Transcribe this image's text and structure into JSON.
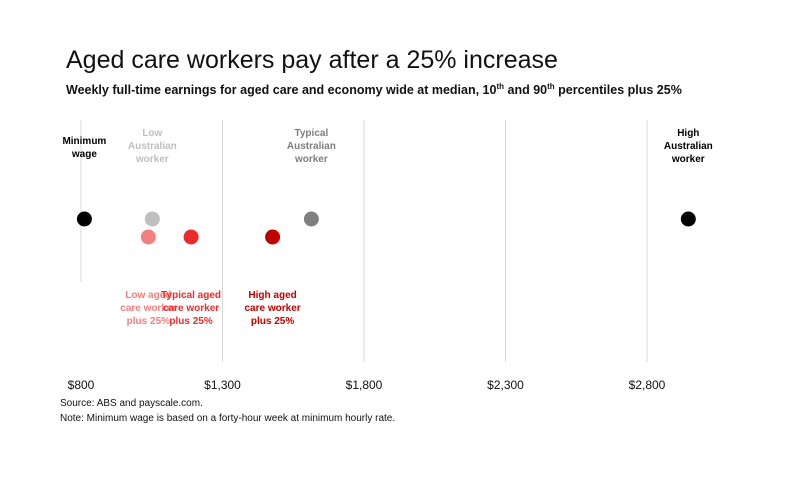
{
  "title": "Aged care workers pay after a 25% increase",
  "subtitle": {
    "prefix": "Weekly full-time earnings for aged care and economy wide at median, 10",
    "sup1": "th",
    "middle": " and 90",
    "sup2": "th",
    "suffix": " percentiles plus 25%"
  },
  "source": "Source: ABS and payscale.com.",
  "note": "Note: Minimum wage is based on a forty-hour week at minimum hourly rate.",
  "chart_data": {
    "type": "scatter",
    "xlim": [
      800,
      3000
    ],
    "x_ticks": [
      800,
      1300,
      1800,
      2300,
      2800
    ],
    "x_tick_labels": [
      "$800",
      "$1,300",
      "$1,800",
      "$2,300",
      "$2,800"
    ],
    "grid": true,
    "legend": "none",
    "points": [
      {
        "id": "minimum-wage",
        "label": [
          "Minimum",
          "wage"
        ],
        "x": 812,
        "row": "top",
        "label_pos": "above",
        "color": "#000000",
        "label_color": "#000000"
      },
      {
        "id": "low-australian-worker",
        "label": [
          "Low",
          "Australian",
          "worker"
        ],
        "x": 1052,
        "row": "top",
        "label_pos": "above",
        "color": "#bfbfbf",
        "label_color": "#bfbfbf"
      },
      {
        "id": "typical-australian-worker",
        "label": [
          "Typical",
          "Australian",
          "worker"
        ],
        "x": 1614,
        "row": "top",
        "label_pos": "above",
        "color": "#7f7f7f",
        "label_color": "#7f7f7f"
      },
      {
        "id": "high-australian-worker",
        "label": [
          "High",
          "Australian",
          "worker"
        ],
        "x": 2946,
        "row": "top",
        "label_pos": "above",
        "color": "#000000",
        "label_color": "#000000"
      },
      {
        "id": "low-aged-care-worker",
        "label": [
          "Low aged",
          "care worker",
          "plus 25%"
        ],
        "x": 1038,
        "row": "bottom",
        "label_pos": "below",
        "color": "#f28080",
        "label_color": "#f28080"
      },
      {
        "id": "typical-aged-care-worker",
        "label": [
          "Typical aged",
          "care worker",
          "plus 25%"
        ],
        "x": 1189,
        "row": "bottom",
        "label_pos": "below",
        "color": "#ee2a2a",
        "label_color": "#ee2a2a"
      },
      {
        "id": "high-aged-care-worker",
        "label": [
          "High aged",
          "care worker",
          "plus 25%"
        ],
        "x": 1477,
        "row": "bottom",
        "label_pos": "below",
        "color": "#c00000",
        "label_color": "#c00000"
      }
    ]
  }
}
